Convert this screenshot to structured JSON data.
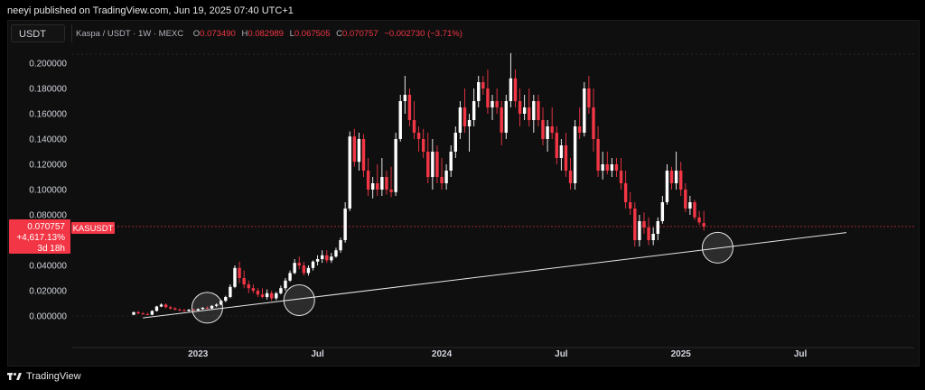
{
  "header": {
    "published": "neeyi published on TradingView.com, Jun 19, 2025 07:40 UTC+1"
  },
  "toolbar": {
    "currency": "USDT"
  },
  "legend": {
    "symbol": "Kaspa / USDT · 1W · MEXC",
    "o_label": "O",
    "o_value": "0.073490",
    "h_label": "H",
    "h_value": "0.082989",
    "l_label": "L",
    "l_value": "0.067505",
    "c_label": "C",
    "c_value": "0.070757",
    "change": "−0.002730 (−3.71%)"
  },
  "price_tag": {
    "price": "0.070757",
    "change": "+4,617.13%",
    "countdown": "3d 18h",
    "ticker": "KASUSDT"
  },
  "brand": {
    "name": "TradingView"
  },
  "colors": {
    "up": "#ffffff",
    "down": "#f23645",
    "background": "#0f0f0f",
    "trendline": "#e6e6e6"
  },
  "chart_data": {
    "type": "candlestick",
    "symbol": "KASUSDT",
    "timeframe": "1W",
    "y_ticks": [
      "0.200000",
      "0.180000",
      "0.160000",
      "0.140000",
      "0.120000",
      "0.100000",
      "0.080000",
      "0.060000",
      "0.040000",
      "0.020000",
      "0.000000"
    ],
    "ylim": [
      -0.015,
      0.2
    ],
    "x_ticks": [
      {
        "label": "2023",
        "week": 14
      },
      {
        "label": "Jul",
        "week": 40
      },
      {
        "label": "2024",
        "week": 67
      },
      {
        "label": "Jul",
        "week": 93
      },
      {
        "label": "2025",
        "week": 119
      },
      {
        "label": "Jul",
        "week": 145
      }
    ],
    "last_price": 0.070757,
    "candles": [
      [
        0.001,
        0.0035,
        0.0005,
        0.003
      ],
      [
        0.003,
        0.004,
        0.0015,
        0.002
      ],
      [
        0.002,
        0.003,
        0.001,
        0.0015
      ],
      [
        0.0015,
        0.0025,
        0.0005,
        0.001
      ],
      [
        0.001,
        0.0045,
        0.0005,
        0.004
      ],
      [
        0.004,
        0.008,
        0.0035,
        0.0075
      ],
      [
        0.0075,
        0.01,
        0.007,
        0.009
      ],
      [
        0.009,
        0.01,
        0.006,
        0.007
      ],
      [
        0.007,
        0.008,
        0.005,
        0.006
      ],
      [
        0.006,
        0.007,
        0.0045,
        0.005
      ],
      [
        0.005,
        0.006,
        0.004,
        0.0045
      ],
      [
        0.0045,
        0.0055,
        0.0035,
        0.004
      ],
      [
        0.004,
        0.0055,
        0.0035,
        0.005
      ],
      [
        0.005,
        0.006,
        0.004,
        0.0045
      ],
      [
        0.0045,
        0.006,
        0.004,
        0.0055
      ],
      [
        0.0055,
        0.007,
        0.005,
        0.0065
      ],
      [
        0.0065,
        0.0075,
        0.0055,
        0.006
      ],
      [
        0.006,
        0.0085,
        0.0055,
        0.008
      ],
      [
        0.008,
        0.01,
        0.007,
        0.009
      ],
      [
        0.009,
        0.013,
        0.0085,
        0.012
      ],
      [
        0.012,
        0.016,
        0.011,
        0.015
      ],
      [
        0.015,
        0.025,
        0.014,
        0.023
      ],
      [
        0.023,
        0.04,
        0.022,
        0.038
      ],
      [
        0.038,
        0.043,
        0.026,
        0.03
      ],
      [
        0.03,
        0.036,
        0.022,
        0.025
      ],
      [
        0.025,
        0.028,
        0.018,
        0.022
      ],
      [
        0.022,
        0.025,
        0.018,
        0.02
      ],
      [
        0.02,
        0.022,
        0.015,
        0.017
      ],
      [
        0.017,
        0.022,
        0.014,
        0.015
      ],
      [
        0.015,
        0.021,
        0.013,
        0.018
      ],
      [
        0.018,
        0.02,
        0.012,
        0.014
      ],
      [
        0.014,
        0.019,
        0.0125,
        0.018
      ],
      [
        0.018,
        0.024,
        0.017,
        0.022
      ],
      [
        0.022,
        0.03,
        0.02,
        0.028
      ],
      [
        0.028,
        0.036,
        0.027,
        0.034
      ],
      [
        0.034,
        0.045,
        0.033,
        0.042
      ],
      [
        0.042,
        0.047,
        0.037,
        0.04
      ],
      [
        0.04,
        0.043,
        0.032,
        0.034
      ],
      [
        0.034,
        0.04,
        0.032,
        0.038
      ],
      [
        0.038,
        0.044,
        0.036,
        0.043
      ],
      [
        0.043,
        0.048,
        0.04,
        0.045
      ],
      [
        0.045,
        0.052,
        0.042,
        0.048
      ],
      [
        0.048,
        0.052,
        0.042,
        0.044
      ],
      [
        0.044,
        0.05,
        0.042,
        0.047
      ],
      [
        0.047,
        0.054,
        0.046,
        0.052
      ],
      [
        0.052,
        0.062,
        0.05,
        0.06
      ],
      [
        0.06,
        0.09,
        0.058,
        0.085
      ],
      [
        0.085,
        0.146,
        0.083,
        0.142
      ],
      [
        0.142,
        0.148,
        0.118,
        0.122
      ],
      [
        0.122,
        0.145,
        0.115,
        0.14
      ],
      [
        0.14,
        0.144,
        0.11,
        0.115
      ],
      [
        0.115,
        0.125,
        0.095,
        0.1
      ],
      [
        0.1,
        0.11,
        0.093,
        0.105
      ],
      [
        0.105,
        0.12,
        0.095,
        0.1
      ],
      [
        0.1,
        0.125,
        0.095,
        0.11
      ],
      [
        0.11,
        0.115,
        0.096,
        0.1
      ],
      [
        0.1,
        0.118,
        0.094,
        0.098
      ],
      [
        0.098,
        0.145,
        0.095,
        0.14
      ],
      [
        0.14,
        0.175,
        0.138,
        0.17
      ],
      [
        0.17,
        0.19,
        0.16,
        0.175
      ],
      [
        0.175,
        0.18,
        0.15,
        0.155
      ],
      [
        0.155,
        0.17,
        0.14,
        0.145
      ],
      [
        0.145,
        0.15,
        0.13,
        0.14
      ],
      [
        0.14,
        0.148,
        0.125,
        0.13
      ],
      [
        0.13,
        0.145,
        0.105,
        0.11
      ],
      [
        0.11,
        0.14,
        0.1,
        0.13
      ],
      [
        0.13,
        0.135,
        0.105,
        0.11
      ],
      [
        0.11,
        0.125,
        0.1,
        0.105
      ],
      [
        0.105,
        0.12,
        0.1,
        0.115
      ],
      [
        0.115,
        0.135,
        0.11,
        0.13
      ],
      [
        0.13,
        0.15,
        0.125,
        0.145
      ],
      [
        0.145,
        0.17,
        0.14,
        0.165
      ],
      [
        0.165,
        0.18,
        0.145,
        0.15
      ],
      [
        0.15,
        0.16,
        0.13,
        0.155
      ],
      [
        0.155,
        0.18,
        0.15,
        0.17
      ],
      [
        0.17,
        0.19,
        0.165,
        0.185
      ],
      [
        0.185,
        0.19,
        0.175,
        0.18
      ],
      [
        0.18,
        0.195,
        0.16,
        0.165
      ],
      [
        0.165,
        0.175,
        0.155,
        0.17
      ],
      [
        0.17,
        0.18,
        0.16,
        0.165
      ],
      [
        0.165,
        0.17,
        0.135,
        0.145
      ],
      [
        0.145,
        0.175,
        0.14,
        0.17
      ],
      [
        0.17,
        0.208,
        0.165,
        0.188
      ],
      [
        0.188,
        0.195,
        0.165,
        0.17
      ],
      [
        0.17,
        0.18,
        0.15,
        0.16
      ],
      [
        0.16,
        0.175,
        0.155,
        0.165
      ],
      [
        0.165,
        0.18,
        0.15,
        0.155
      ],
      [
        0.155,
        0.175,
        0.145,
        0.17
      ],
      [
        0.17,
        0.175,
        0.15,
        0.155
      ],
      [
        0.155,
        0.165,
        0.135,
        0.14
      ],
      [
        0.14,
        0.155,
        0.13,
        0.15
      ],
      [
        0.15,
        0.165,
        0.14,
        0.145
      ],
      [
        0.145,
        0.15,
        0.12,
        0.125
      ],
      [
        0.125,
        0.14,
        0.115,
        0.135
      ],
      [
        0.135,
        0.145,
        0.11,
        0.115
      ],
      [
        0.115,
        0.125,
        0.1,
        0.105
      ],
      [
        0.105,
        0.155,
        0.1,
        0.15
      ],
      [
        0.15,
        0.165,
        0.14,
        0.145
      ],
      [
        0.145,
        0.185,
        0.142,
        0.18
      ],
      [
        0.18,
        0.19,
        0.16,
        0.165
      ],
      [
        0.165,
        0.18,
        0.13,
        0.14
      ],
      [
        0.14,
        0.15,
        0.11,
        0.115
      ],
      [
        0.115,
        0.13,
        0.108,
        0.12
      ],
      [
        0.12,
        0.13,
        0.112,
        0.115
      ],
      [
        0.115,
        0.125,
        0.11,
        0.12
      ],
      [
        0.12,
        0.125,
        0.11,
        0.115
      ],
      [
        0.115,
        0.125,
        0.1,
        0.105
      ],
      [
        0.105,
        0.115,
        0.085,
        0.09
      ],
      [
        0.09,
        0.098,
        0.08,
        0.085
      ],
      [
        0.085,
        0.09,
        0.055,
        0.06
      ],
      [
        0.06,
        0.08,
        0.055,
        0.075
      ],
      [
        0.075,
        0.082,
        0.065,
        0.07
      ],
      [
        0.07,
        0.078,
        0.056,
        0.06
      ],
      [
        0.06,
        0.07,
        0.056,
        0.065
      ],
      [
        0.065,
        0.078,
        0.06,
        0.075
      ],
      [
        0.075,
        0.095,
        0.073,
        0.09
      ],
      [
        0.09,
        0.12,
        0.088,
        0.115
      ],
      [
        0.115,
        0.118,
        0.1,
        0.105
      ],
      [
        0.105,
        0.13,
        0.1,
        0.115
      ],
      [
        0.115,
        0.122,
        0.095,
        0.1
      ],
      [
        0.1,
        0.105,
        0.082,
        0.085
      ],
      [
        0.085,
        0.095,
        0.08,
        0.09
      ],
      [
        0.09,
        0.092,
        0.076,
        0.078
      ],
      [
        0.078,
        0.083,
        0.072,
        0.074
      ],
      [
        0.0735,
        0.083,
        0.0675,
        0.0708
      ]
    ],
    "trendline": {
      "start_week": 2,
      "start_price": -0.0015,
      "end_week": 155,
      "end_price": 0.066
    },
    "circles": [
      {
        "week": 16,
        "price": 0.0065
      },
      {
        "week": 36,
        "price": 0.0125
      },
      {
        "week": 127,
        "price": 0.054
      }
    ]
  }
}
